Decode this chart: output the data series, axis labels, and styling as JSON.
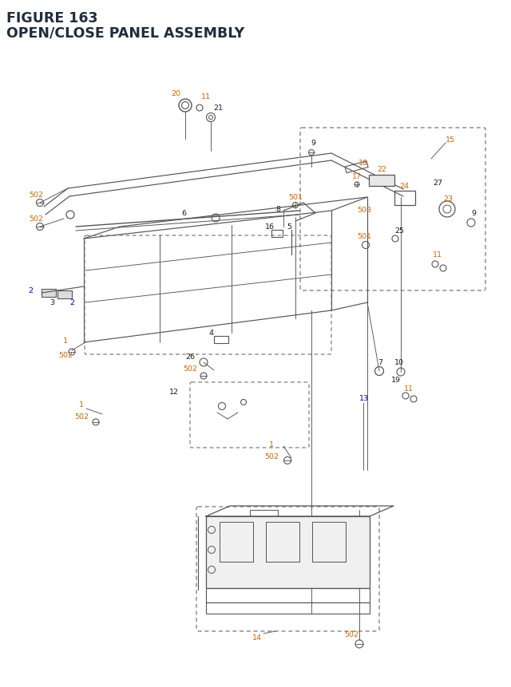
{
  "title_line1": "FIGURE 163",
  "title_line2": "OPEN/CLOSE PANEL ASSEMBLY",
  "title_color": "#1f2d3d",
  "title_fontsize": 12.5,
  "bg_color": "#ffffff",
  "orange": "#cc6600",
  "blue": "#0000bb",
  "black": "#1a1a1a",
  "gray": "#555555",
  "dash_color": "#777777",
  "fig_width": 6.4,
  "fig_height": 8.62,
  "dpi": 100
}
